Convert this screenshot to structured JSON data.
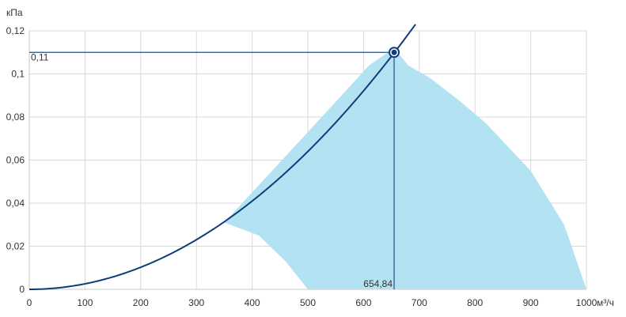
{
  "chart_data": {
    "type": "line",
    "ylabel": "кПа",
    "xlabel": "м³/ч",
    "xlim": [
      0,
      1000
    ],
    "ylim": [
      0,
      0.12
    ],
    "x_ticks": [
      0,
      100,
      200,
      300,
      400,
      500,
      600,
      700,
      800,
      900,
      1000
    ],
    "x_tick_labels": [
      "0",
      "100",
      "200",
      "300",
      "400",
      "500",
      "600",
      "700",
      "800",
      "900",
      "1000"
    ],
    "y_ticks": [
      0,
      0.02,
      0.04,
      0.06,
      0.08,
      0.1,
      0.12
    ],
    "y_tick_labels": [
      "0",
      "0,02",
      "0,04",
      "0,06",
      "0,08",
      "0,1",
      "0,12"
    ],
    "grid": true,
    "colors": {
      "curve": "#0e3d78",
      "area": "#b3e3f2",
      "marker": "#0e3d78",
      "grid": "#d9d9d9",
      "guide": "#1f4f84"
    },
    "system_curve": {
      "k": 2.56e-07
    },
    "operating_area": [
      [
        350,
        0.031
      ],
      [
        412,
        0.025
      ],
      [
        460,
        0.013
      ],
      [
        500,
        0.0
      ],
      [
        1000,
        0.0
      ],
      [
        960,
        0.03
      ],
      [
        900,
        0.055
      ],
      [
        820,
        0.077
      ],
      [
        770,
        0.088
      ],
      [
        720,
        0.098
      ],
      [
        680,
        0.104
      ],
      [
        655,
        0.112
      ],
      [
        610,
        0.104
      ],
      [
        500,
        0.073
      ],
      [
        400,
        0.045
      ]
    ],
    "operating_point": {
      "x": 654.84,
      "y": 0.11,
      "x_label": "654,84",
      "y_label": "0,11"
    }
  }
}
